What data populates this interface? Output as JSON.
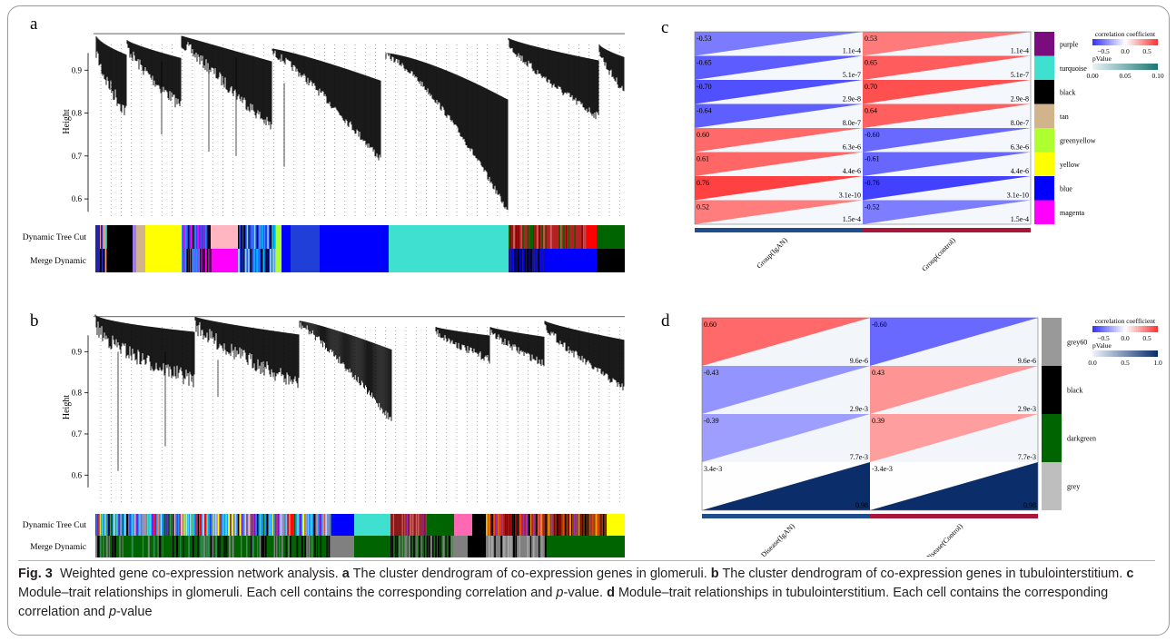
{
  "panels": {
    "a": {
      "letter": "a",
      "y_label": "Height",
      "y_ticks": [
        "0.9",
        "0.8",
        "0.7",
        "0.6"
      ],
      "row_labels": [
        "Dynamic Tree Cut",
        "Merge Dynamic"
      ]
    },
    "b": {
      "letter": "b",
      "y_label": "Height",
      "y_ticks": [
        "0.9",
        "0.8",
        "0.7",
        "0.6"
      ],
      "row_labels": [
        "Dynamic Tree Cut",
        "Merge Dynamic"
      ]
    },
    "c": {
      "letter": "c",
      "legend_title": "correlation coefficient",
      "legend_ticks": [
        "−0.5",
        "0.0",
        "0.5"
      ],
      "pvalue_title": "pValue",
      "pvalue_ticks": [
        "0.00",
        "0.05",
        "0.10"
      ],
      "columns": [
        "Group(IgAN)",
        "Group(control)"
      ],
      "modules": [
        "purple",
        "turquoise",
        "black",
        "tan",
        "greenyellow",
        "yellow",
        "blue",
        "magenta"
      ],
      "module_colors": [
        "#7b0c7e",
        "#40e0d0",
        "#000000",
        "#d2b48c",
        "#adff2f",
        "#ffff00",
        "#0000ff",
        "#ff00ff"
      ],
      "correlations": [
        [
          -0.53,
          0.53
        ],
        [
          -0.65,
          0.65
        ],
        [
          -0.7,
          0.7
        ],
        [
          -0.64,
          0.64
        ],
        [
          0.6,
          -0.6
        ],
        [
          0.61,
          -0.61
        ],
        [
          0.76,
          -0.76
        ],
        [
          0.52,
          -0.52
        ]
      ],
      "corr_labels": [
        [
          "-0.53",
          "0.53"
        ],
        [
          "-0.65",
          "0.65"
        ],
        [
          "-0.70",
          "0.70"
        ],
        [
          "-0.64",
          "0.64"
        ],
        [
          "0.60",
          "-0.60"
        ],
        [
          "0.61",
          "-0.61"
        ],
        [
          "0.76",
          "-0.76"
        ],
        [
          "0.52",
          "-0.52"
        ]
      ],
      "pvalues": [
        "1.1e-4",
        "5.1e-7",
        "2.9e-8",
        "8.0e-7",
        "6.3e-6",
        "4.4e-6",
        "3.1e-10",
        "1.5e-4"
      ]
    },
    "d": {
      "letter": "d",
      "legend_title": "correlation coefficient",
      "legend_ticks": [
        "−0.5",
        "0.0",
        "0.5"
      ],
      "pvalue_title": "pValue",
      "pvalue_ticks": [
        "0.0",
        "0.5",
        "1.0"
      ],
      "columns": [
        "Disease(IgAN)",
        "Disease(Control)"
      ],
      "modules": [
        "grey60",
        "black",
        "darkgreen",
        "grey"
      ],
      "module_colors": [
        "#999999",
        "#000000",
        "#006400",
        "#bebebe"
      ],
      "correlations": [
        [
          0.6,
          -0.6
        ],
        [
          -0.43,
          0.43
        ],
        [
          -0.39,
          0.39
        ],
        [
          0.0034,
          -0.0034
        ]
      ],
      "corr_labels": [
        [
          "0.60",
          "-0.60"
        ],
        [
          "-0.43",
          "0.43"
        ],
        [
          "-0.39",
          "0.39"
        ],
        [
          "3.4e-3",
          "-3.4e-3"
        ]
      ],
      "pvalues": [
        "9.6e-6",
        "2.9e-3",
        "7.7e-3",
        "0.98"
      ]
    }
  },
  "caption": {
    "fig_label": "Fig. 3",
    "title": "Weighted gene co-expression network analysis.",
    "a_label": "a",
    "a_text": "The cluster dendrogram of co-expression genes in glomeruli.",
    "b_label": "b",
    "b_text": "The cluster dendrogram of co-expression genes in tubulointerstitium.",
    "c_label": "c",
    "c_text": "Module–trait relationships in glomeruli. Each cell contains the corresponding correlation and",
    "p1": "p",
    "c_end": "-value.",
    "d_label": "d",
    "d_text": "Module–trait relationships in tubulointerstitium. Each cell contains the corresponding correlation and",
    "p2": "p",
    "d_end": "-value"
  }
}
